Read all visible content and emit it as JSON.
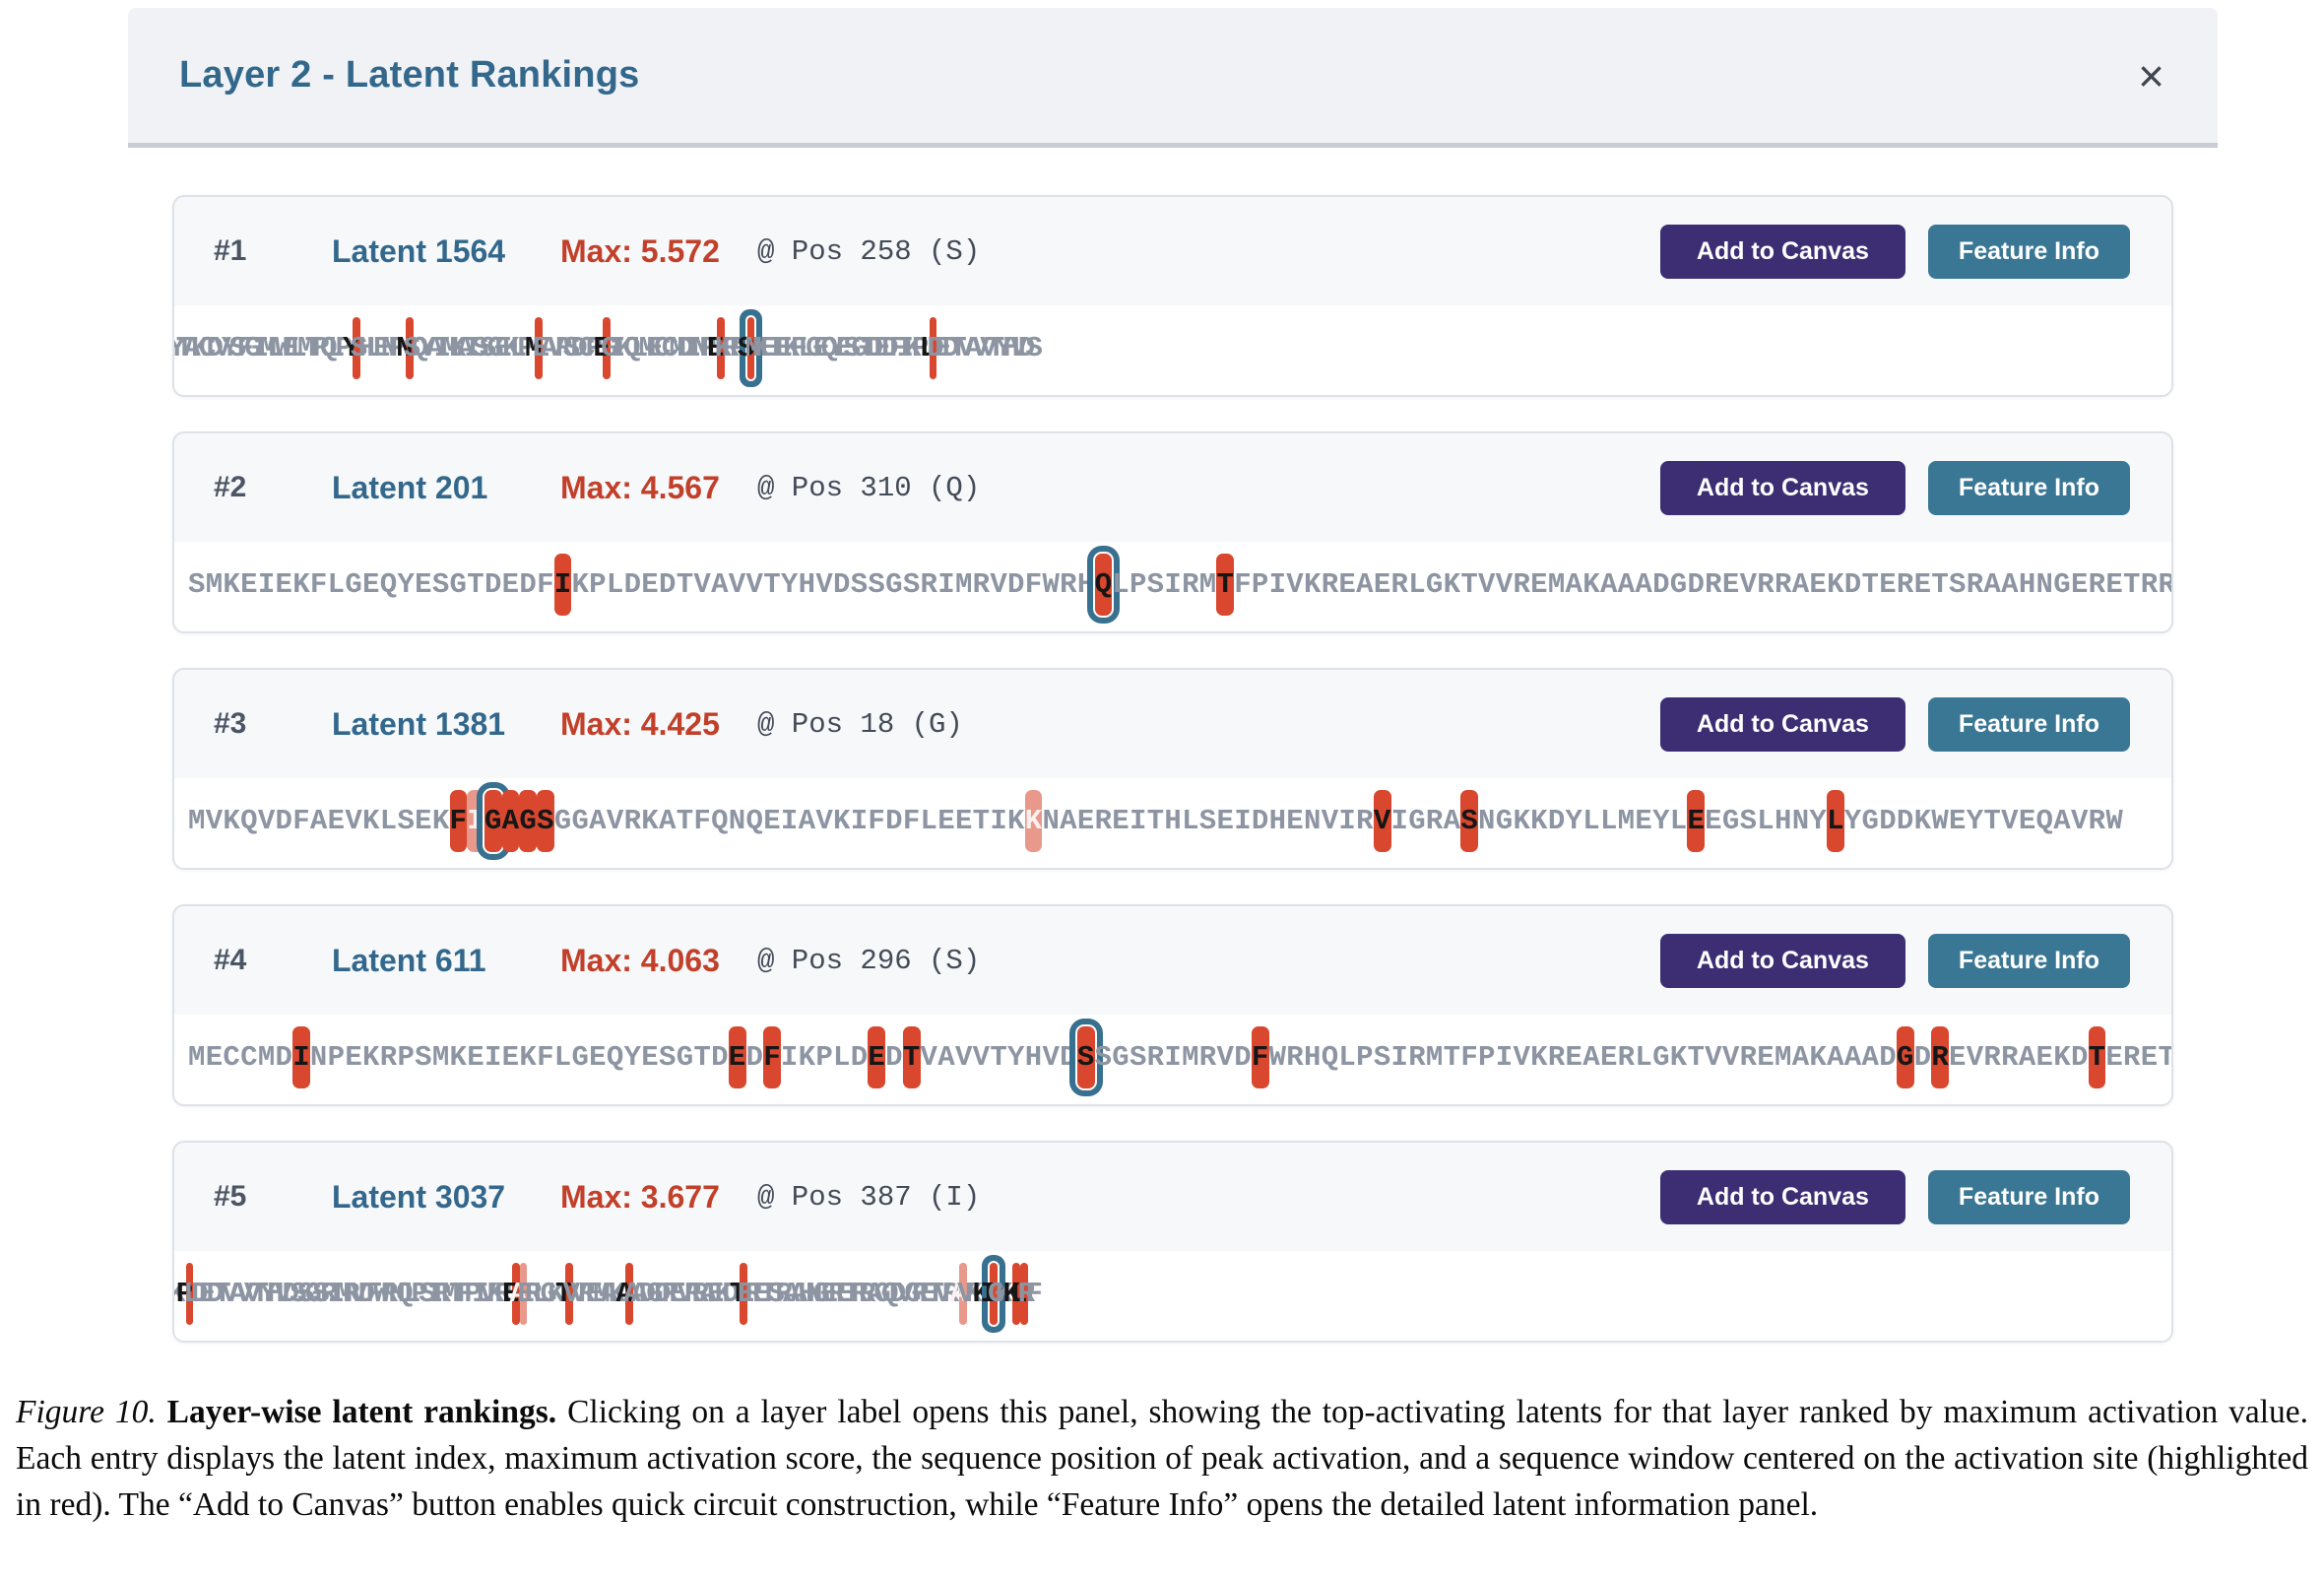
{
  "panel": {
    "title": "Layer 2 - Latent Rankings",
    "close_icon": "×"
  },
  "buttons": {
    "add_to_canvas": "Add to Canvas",
    "feature_info": "Feature Info"
  },
  "colors": {
    "accent_blue": "#33688c",
    "accent_red": "#c2402a",
    "highlight_red": "#d8472e",
    "highlight_pale": "#e9988c",
    "peak_ring_blue": "#38718f",
    "button_purple": "#3d2e74",
    "button_teal": "#3a7795",
    "sequence_gray": "#8d95a3"
  },
  "entries": [
    {
      "rank": "#1",
      "latent": "Latent 1564",
      "max": "Max: 5.572",
      "pos": "@ Pos 258 (S)",
      "sequence": "YTAKCDVYSFGIMLWELMTRQLPYSHLENPNSQYAIMKAISSGEKLPMEAVRSDCPEGIKQLMECCMDINPEKRPSMKEIEKFLGEQYESGTDEDFIKPLDEDTVAVVTYHVDS",
      "highlights": [
        {
          "i": 23,
          "t": "red"
        },
        {
          "i": 30,
          "t": "red"
        },
        {
          "i": 47,
          "t": "red"
        },
        {
          "i": 56,
          "t": "red"
        },
        {
          "i": 71,
          "t": "red"
        },
        {
          "i": 75,
          "t": "peak"
        },
        {
          "i": 99,
          "t": "red"
        }
      ]
    },
    {
      "rank": "#2",
      "latent": "Latent 201",
      "max": "Max: 4.567",
      "pos": "@ Pos 310 (Q)",
      "sequence": "SMKEIEKFLGEQYESGTDEDFIKPLDEDTVAVVTYHVDSSGSRIMRVDFWRHQLPSIRMTFPIVKREAERLGKTVVREMAKAAADGDREVRRAEKDTERETSRAAHNGERETRR",
      "highlights": [
        {
          "i": 21,
          "t": "red"
        },
        {
          "i": 52,
          "t": "peak"
        },
        {
          "i": 59,
          "t": "red"
        }
      ]
    },
    {
      "rank": "#3",
      "latent": "Latent 1381",
      "max": "Max: 4.425",
      "pos": "@ Pos 18 (G)",
      "sequence": "MVKQVDFAEVKLSEKFIGAGSGGAVRKATFQNQEIAVKIFDFLEETIKKNAEREITHLSEIDHENVIRVIGRASNGKKDYLLMEYLEEGSLHNYLYGDDKWEYTVEQAVRW",
      "highlights": [
        {
          "i": 15,
          "t": "red"
        },
        {
          "i": 16,
          "t": "pale"
        },
        {
          "i": 17,
          "t": "peak"
        },
        {
          "i": 18,
          "t": "red"
        },
        {
          "i": 19,
          "t": "red"
        },
        {
          "i": 20,
          "t": "red"
        },
        {
          "i": 48,
          "t": "pale"
        },
        {
          "i": 68,
          "t": "red"
        },
        {
          "i": 73,
          "t": "red"
        },
        {
          "i": 86,
          "t": "red"
        },
        {
          "i": 94,
          "t": "red"
        }
      ]
    },
    {
      "rank": "#4",
      "latent": "Latent 611",
      "max": "Max: 4.063",
      "pos": "@ Pos 296 (S)",
      "sequence": "MECCMDINPEKRPSMKEIEKFLGEQYESGTDEDFIKPLDEDTVAVVTYHVDSSGSRIMRVDFWRHQLPSIRMTFPIVKREAERLGKTVVREMAKAAADGDREVRRAEKDTERET",
      "highlights": [
        {
          "i": 6,
          "t": "red"
        },
        {
          "i": 31,
          "t": "red"
        },
        {
          "i": 33,
          "t": "red"
        },
        {
          "i": 39,
          "t": "red"
        },
        {
          "i": 41,
          "t": "red"
        },
        {
          "i": 51,
          "t": "peak"
        },
        {
          "i": 61,
          "t": "red"
        },
        {
          "i": 98,
          "t": "red"
        },
        {
          "i": 100,
          "t": "red"
        },
        {
          "i": 109,
          "t": "red"
        }
      ]
    },
    {
      "rank": "#5",
      "latent": "Latent 3037",
      "max": "Max: 3.677",
      "pos": "@ Pos 387 (I)",
      "sequence": "KPLDEDTVAVVTYHVDSSGSRIMRVDFWRHQLPSIRMTFPIVKREAERLGKTVVREMAKAAADGDREVRRAEKDTERETSRAAHNGERETRRAGQDVGRETVRAVKKIGKKLRF",
      "highlights": [
        {
          "i": 1,
          "t": "red"
        },
        {
          "i": 44,
          "t": "red"
        },
        {
          "i": 45,
          "t": "pale"
        },
        {
          "i": 51,
          "t": "red"
        },
        {
          "i": 59,
          "t": "red"
        },
        {
          "i": 74,
          "t": "red"
        },
        {
          "i": 103,
          "t": "pale"
        },
        {
          "i": 106,
          "t": "red"
        },
        {
          "i": 107,
          "t": "peak"
        },
        {
          "i": 110,
          "t": "red"
        },
        {
          "i": 111,
          "t": "red"
        }
      ]
    }
  ],
  "caption": {
    "figure_label": "Figure 10.",
    "title": "Layer-wise latent rankings.",
    "body": "Clicking on a layer label opens this panel, showing the top-activating latents for that layer ranked by maximum activation value. Each entry displays the latent index, maximum activation score, the sequence position of peak activation, and a sequence window centered on the activation site (highlighted in red). The “Add to Canvas” button enables quick circuit construction, while “Feature Info” opens the detailed latent information panel."
  }
}
